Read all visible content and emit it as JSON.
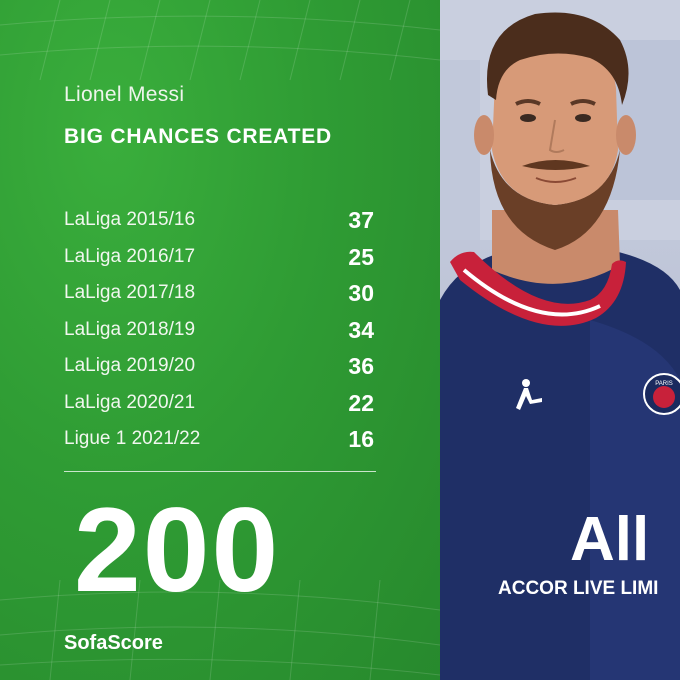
{
  "header": {
    "player_name": "Lionel Messi",
    "metric_title": "BIG CHANCES CREATED"
  },
  "stats": {
    "rows": [
      {
        "season": "LaLiga 2015/16",
        "value": "37"
      },
      {
        "season": "LaLiga 2016/17",
        "value": "25"
      },
      {
        "season": "LaLiga 2017/18",
        "value": "30"
      },
      {
        "season": "LaLiga 2018/19",
        "value": "34"
      },
      {
        "season": "LaLiga 2019/20",
        "value": "36"
      },
      {
        "season": "LaLiga 2020/21",
        "value": "22"
      },
      {
        "season": "Ligue 1 2021/22",
        "value": "16"
      }
    ],
    "total": "200"
  },
  "brand": {
    "name": "SofaScore"
  },
  "photo": {
    "shirt_sponsor": "ACCOR LIVE LIMI",
    "shirt_logo": "All",
    "crest_text": "PARIS"
  },
  "colors": {
    "panel_green": "#2f9a35",
    "shirt_navy": "#1f2f66",
    "collar_red": "#c8213a"
  }
}
